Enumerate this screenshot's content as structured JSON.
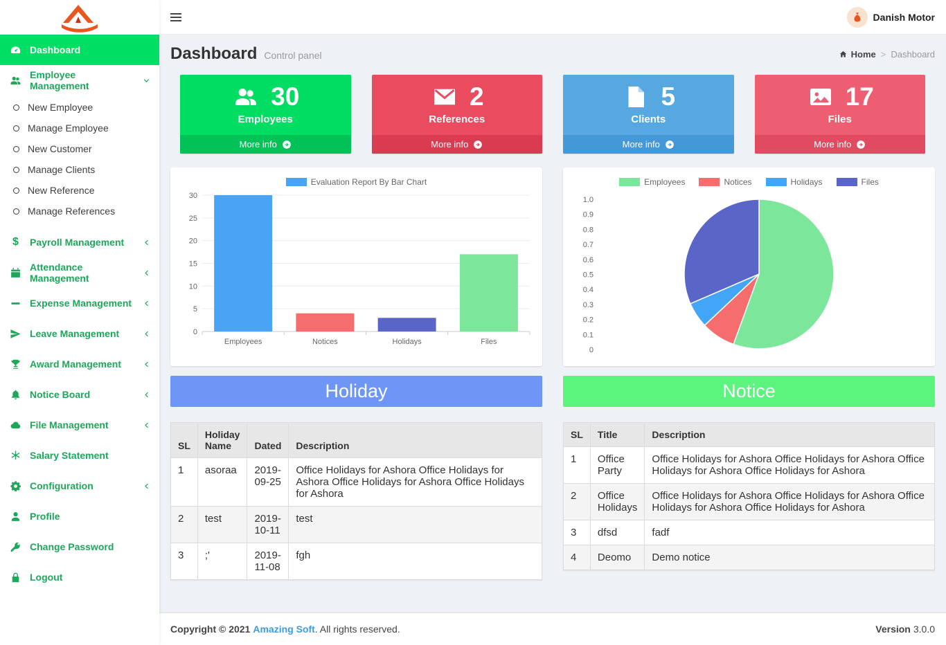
{
  "colors": {
    "sidebar_link": "#1ea65b",
    "sidebar_active_bg": "#00de64",
    "logo_orange": "#e8551d",
    "link": "#3c9cdc"
  },
  "topbar": {
    "user_name": "Danish Motor"
  },
  "page": {
    "title": "Dashboard",
    "subtitle": "Control panel",
    "breadcrumb": {
      "home": "Home",
      "separator": ">",
      "current": "Dashboard"
    }
  },
  "sidebar": {
    "items": [
      {
        "label": "Dashboard"
      },
      {
        "label": "Employee Management"
      },
      {
        "label": "Payroll Management"
      },
      {
        "label": "Attendance Management"
      },
      {
        "label": "Expense Management"
      },
      {
        "label": "Leave Management"
      },
      {
        "label": "Award Management"
      },
      {
        "label": "Notice Board"
      },
      {
        "label": "File Management"
      },
      {
        "label": "Salary Statement"
      },
      {
        "label": "Configuration"
      },
      {
        "label": "Profile"
      },
      {
        "label": "Change Password"
      },
      {
        "label": "Logout"
      }
    ],
    "submenu": [
      "New Employee",
      "Manage Employee",
      "New Customer",
      "Manage Clients",
      "New Reference",
      "Manage References"
    ]
  },
  "info_boxes": [
    {
      "value": "30",
      "label": "Employees",
      "more_label": "More info",
      "color": "#00dd63",
      "footer_color": "#00c256",
      "icon": "users-icon"
    },
    {
      "value": "2",
      "label": "References",
      "more_label": "More info",
      "color": "#e94b5f",
      "footer_color": "#d93c50",
      "icon": "envelope-icon"
    },
    {
      "value": "5",
      "label": "Clients",
      "more_label": "More info",
      "color": "#57a7e1",
      "footer_color": "#4598d8",
      "icon": "file-icon"
    },
    {
      "value": "17",
      "label": "Files",
      "more_label": "More info",
      "color": "#ee5e72",
      "footer_color": "#e14b61",
      "icon": "image-icon"
    }
  ],
  "chart_data": [
    {
      "type": "bar",
      "title": "Evaluation Report By Bar Chart",
      "legend_color": "#4aa3f5",
      "legend_position": "top",
      "categories": [
        "Employees",
        "Notices",
        "Holidays",
        "Files"
      ],
      "values": [
        30,
        4,
        3,
        17
      ],
      "colors": [
        "#4aa3f5",
        "#f66d6d",
        "#5a65c8",
        "#7ce79b"
      ],
      "ylim": [
        0,
        30
      ],
      "yticks": [
        0,
        5,
        10,
        15,
        20,
        25,
        30
      ],
      "grid": true
    },
    {
      "type": "pie",
      "legend": [
        "Employees",
        "Notices",
        "Holidays",
        "Files"
      ],
      "legend_position": "top",
      "values": [
        30,
        4,
        3,
        17
      ],
      "colors": [
        "#7ce79b",
        "#f66d6d",
        "#42a5f5",
        "#5a65c8"
      ],
      "axis_ticks": [
        "1.0",
        "0.9",
        "0.8",
        "0.7",
        "0.6",
        "0.5",
        "0.4",
        "0.3",
        "0.2",
        "0.1",
        "0"
      ]
    }
  ],
  "holiday": {
    "title": "Holiday",
    "header_color": "#6e96f6",
    "columns": [
      "SL",
      "Holiday Name",
      "Dated",
      "Description"
    ],
    "rows": [
      [
        "1",
        "asoraa",
        "2019-09-25",
        "Office Holidays for Ashora Office Holidays for Ashora Office Holidays for Ashora Office Holidays for Ashora"
      ],
      [
        "2",
        "test",
        "2019-10-11",
        "test"
      ],
      [
        "3",
        ";'",
        "2019-11-08",
        "fgh"
      ]
    ]
  },
  "notice": {
    "title": "Notice",
    "header_color": "#5bf57e",
    "columns": [
      "SL",
      "Title",
      "Description"
    ],
    "rows": [
      [
        "1",
        "Office Party",
        "Office Holidays for Ashora Office Holidays for Ashora Office Holidays for Ashora Office Holidays for Ashora"
      ],
      [
        "2",
        "Office Holidays",
        "Office Holidays for Ashora Office Holidays for Ashora Office Holidays for Ashora Office Holidays for Ashora"
      ],
      [
        "3",
        "dfsd",
        "fadf"
      ],
      [
        "4",
        "Deomo",
        "Demo notice"
      ]
    ]
  },
  "footer": {
    "copyright": "Copyright © 2021",
    "company": "Amazing Soft",
    "rights": ". All rights reserved.",
    "version_label": "Version",
    "version": "3.0.0"
  }
}
